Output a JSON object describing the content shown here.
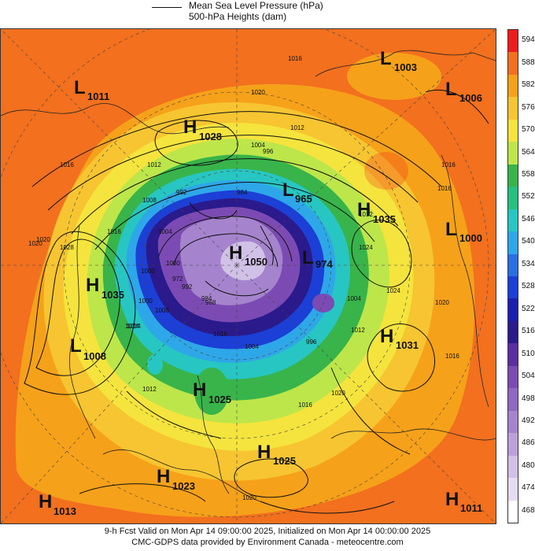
{
  "legend": {
    "line1": "Mean Sea Level Pressure (hPa)",
    "line2": "500-hPa Heights (dam)"
  },
  "colorbar": {
    "labels": [
      "594",
      "588",
      "582",
      "576",
      "570",
      "564",
      "558",
      "552",
      "546",
      "540",
      "534",
      "528",
      "522",
      "516",
      "510",
      "504",
      "498",
      "492",
      "486",
      "480",
      "474",
      "468"
    ],
    "colors": [
      "#ee1c1c",
      "#f2701e",
      "#f6a11a",
      "#f7c531",
      "#f5e43d",
      "#bde64a",
      "#38b44a",
      "#27c07e",
      "#27c6c2",
      "#2ea7e8",
      "#2a6fe3",
      "#1c3fd6",
      "#1a1fb0",
      "#2a1a8c",
      "#5a2fa0",
      "#7b4bb3",
      "#8f68c1",
      "#a584cd",
      "#bba1da",
      "#d1c1e6",
      "#e6dcf2",
      "#ffffff"
    ]
  },
  "systems": [
    {
      "type": "L",
      "value": "1011",
      "name": "low-1011"
    },
    {
      "type": "L",
      "value": "1003",
      "name": "low-1003"
    },
    {
      "type": "L",
      "value": "1006",
      "name": "low-1006"
    },
    {
      "type": "H",
      "value": "1028",
      "name": "high-1028"
    },
    {
      "type": "L",
      "value": "965",
      "name": "low-965"
    },
    {
      "type": "H",
      "value": "1035",
      "name": "high-1035-east"
    },
    {
      "type": "L",
      "value": "1000",
      "name": "low-1000"
    },
    {
      "type": "H",
      "value": "1050",
      "name": "high-1050"
    },
    {
      "type": "L",
      "value": "974",
      "name": "low-974"
    },
    {
      "type": "H",
      "value": "1035",
      "name": "high-1035-west"
    },
    {
      "type": "L",
      "value": "1008",
      "name": "low-1008"
    },
    {
      "type": "H",
      "value": "1031",
      "name": "high-1031"
    },
    {
      "type": "H",
      "value": "1025",
      "name": "high-1025-center"
    },
    {
      "type": "H",
      "value": "1025",
      "name": "high-1025-south"
    },
    {
      "type": "H",
      "value": "1023",
      "name": "high-1023"
    },
    {
      "type": "H",
      "value": "1013",
      "name": "high-1013"
    },
    {
      "type": "H",
      "value": "1011",
      "name": "high-1011"
    }
  ],
  "isobar_labels": [
    "1016",
    "1020",
    "1012",
    "1004",
    "996",
    "1016",
    "1028",
    "1024",
    "1016",
    "1008",
    "1004",
    "1000",
    "992",
    "984",
    "1012",
    "1000",
    "1024",
    "1004",
    "996",
    "1012",
    "1020",
    "1016",
    "1020",
    "1024",
    "1012",
    "1000",
    "992",
    "984",
    "1008",
    "1016",
    "1020",
    "1012",
    "1016",
    "972",
    "968",
    "1020",
    "1016",
    "1004",
    "1024",
    "1020",
    "1016"
  ],
  "footer": {
    "line1": "9-h Fcst Valid on Mon Apr 14 09:00:00 2025, Initialized on Mon Apr 14 00:00:00 2025",
    "line2": "CMC-GDPS data provided by Environment Canada - meteocentre.com"
  }
}
